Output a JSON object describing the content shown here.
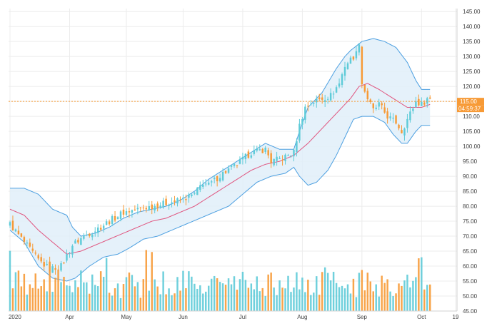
{
  "chart_data": {
    "type": "candlestick",
    "title": "",
    "xlabel": "",
    "ylabel": "",
    "ylim": [
      45,
      146
    ],
    "y_ticks": [
      "45.00",
      "50.00",
      "55.00",
      "60.00",
      "65.00",
      "70.00",
      "75.00",
      "80.00",
      "85.00",
      "90.00",
      "95.00",
      "100.00",
      "105.00",
      "110.00",
      "115.00",
      "120.00",
      "125.00",
      "130.00",
      "135.00",
      "140.00",
      "145.00"
    ],
    "x_ticks": [
      {
        "label": "2020",
        "day": 0
      },
      {
        "label": "Apr",
        "day": 21
      },
      {
        "label": "May",
        "day": 41
      },
      {
        "label": "Jun",
        "day": 61
      },
      {
        "label": "Jul",
        "day": 82
      },
      {
        "label": "Aug",
        "day": 103
      },
      {
        "label": "Sep",
        "day": 124
      },
      {
        "label": "Oct",
        "day": 145
      },
      {
        "label": "19",
        "day": 157
      }
    ],
    "grid": true,
    "colors": {
      "up": "#5fcbd8",
      "down": "#f79a36",
      "band_fill": "#e1eff9",
      "band_line": "#4c9fe0",
      "ma_line": "#e0557f",
      "price_line": "#f79a36"
    },
    "current_price": {
      "value": 115.0,
      "label": "115.00",
      "countdown": "04:59:37"
    },
    "key_points": {
      "close": [
        [
          0,
          74
        ],
        [
          5,
          68
        ],
        [
          10,
          62
        ],
        [
          14,
          59
        ],
        [
          18,
          60
        ],
        [
          22,
          67
        ],
        [
          26,
          70
        ],
        [
          30,
          72
        ],
        [
          35,
          75
        ],
        [
          40,
          78
        ],
        [
          45,
          79
        ],
        [
          50,
          80
        ],
        [
          55,
          81
        ],
        [
          60,
          82
        ],
        [
          65,
          84
        ],
        [
          68,
          88
        ],
        [
          70,
          87
        ],
        [
          75,
          91
        ],
        [
          80,
          94
        ],
        [
          85,
          98
        ],
        [
          90,
          99
        ],
        [
          92,
          95
        ],
        [
          96,
          96
        ],
        [
          100,
          98
        ],
        [
          102,
          107
        ],
        [
          104,
          113
        ],
        [
          107,
          115
        ],
        [
          110,
          116
        ],
        [
          113,
          117
        ],
        [
          116,
          121
        ],
        [
          118,
          127
        ],
        [
          120,
          129
        ],
        [
          122,
          131
        ],
        [
          123,
          135
        ],
        [
          124,
          121
        ],
        [
          126,
          116
        ],
        [
          128,
          112
        ],
        [
          130,
          114
        ],
        [
          133,
          110
        ],
        [
          136,
          108
        ],
        [
          138,
          105
        ],
        [
          140,
          109
        ],
        [
          143,
          115
        ],
        [
          145,
          114
        ],
        [
          147,
          116
        ]
      ],
      "ma": [
        [
          0,
          79
        ],
        [
          5,
          77
        ],
        [
          10,
          72
        ],
        [
          15,
          68
        ],
        [
          20,
          64
        ],
        [
          25,
          65
        ],
        [
          30,
          67
        ],
        [
          35,
          69
        ],
        [
          40,
          71
        ],
        [
          45,
          73
        ],
        [
          50,
          75
        ],
        [
          55,
          76
        ],
        [
          60,
          78
        ],
        [
          65,
          80
        ],
        [
          70,
          83
        ],
        [
          75,
          86
        ],
        [
          80,
          89
        ],
        [
          85,
          92
        ],
        [
          90,
          94
        ],
        [
          95,
          95
        ],
        [
          100,
          97
        ],
        [
          105,
          101
        ],
        [
          110,
          106
        ],
        [
          115,
          111
        ],
        [
          120,
          116
        ],
        [
          123,
          120
        ],
        [
          126,
          121
        ],
        [
          130,
          119
        ],
        [
          135,
          116
        ],
        [
          140,
          113
        ],
        [
          145,
          113
        ],
        [
          148,
          114
        ]
      ],
      "upper": [
        [
          0,
          86
        ],
        [
          5,
          86
        ],
        [
          10,
          84
        ],
        [
          15,
          79
        ],
        [
          20,
          77
        ],
        [
          22,
          73
        ],
        [
          25,
          70
        ],
        [
          30,
          71
        ],
        [
          35,
          73
        ],
        [
          40,
          76
        ],
        [
          45,
          78
        ],
        [
          50,
          79
        ],
        [
          55,
          80
        ],
        [
          60,
          82
        ],
        [
          65,
          85
        ],
        [
          70,
          89
        ],
        [
          75,
          92
        ],
        [
          80,
          95
        ],
        [
          85,
          98
        ],
        [
          90,
          101
        ],
        [
          95,
          99
        ],
        [
          100,
          99
        ],
        [
          102,
          105
        ],
        [
          105,
          113
        ],
        [
          110,
          118
        ],
        [
          115,
          126
        ],
        [
          118,
          130
        ],
        [
          120,
          132
        ],
        [
          124,
          135
        ],
        [
          128,
          136
        ],
        [
          132,
          135
        ],
        [
          136,
          133
        ],
        [
          140,
          128
        ],
        [
          143,
          122
        ],
        [
          145,
          119
        ],
        [
          148,
          119
        ]
      ],
      "lower": [
        [
          0,
          72
        ],
        [
          5,
          68
        ],
        [
          10,
          60
        ],
        [
          15,
          56
        ],
        [
          20,
          55
        ],
        [
          23,
          56
        ],
        [
          28,
          60
        ],
        [
          33,
          63
        ],
        [
          38,
          64
        ],
        [
          42,
          66
        ],
        [
          47,
          69
        ],
        [
          52,
          70
        ],
        [
          57,
          72
        ],
        [
          62,
          74
        ],
        [
          67,
          76
        ],
        [
          72,
          78
        ],
        [
          77,
          80
        ],
        [
          82,
          84
        ],
        [
          87,
          88
        ],
        [
          92,
          90
        ],
        [
          97,
          91
        ],
        [
          100,
          93
        ],
        [
          102,
          90
        ],
        [
          105,
          87
        ],
        [
          108,
          88
        ],
        [
          112,
          92
        ],
        [
          115,
          97
        ],
        [
          118,
          103
        ],
        [
          121,
          109
        ],
        [
          124,
          110
        ],
        [
          128,
          110
        ],
        [
          132,
          108
        ],
        [
          135,
          104
        ],
        [
          138,
          101
        ],
        [
          140,
          101
        ],
        [
          143,
          105
        ],
        [
          145,
          107
        ],
        [
          148,
          107
        ]
      ]
    }
  }
}
